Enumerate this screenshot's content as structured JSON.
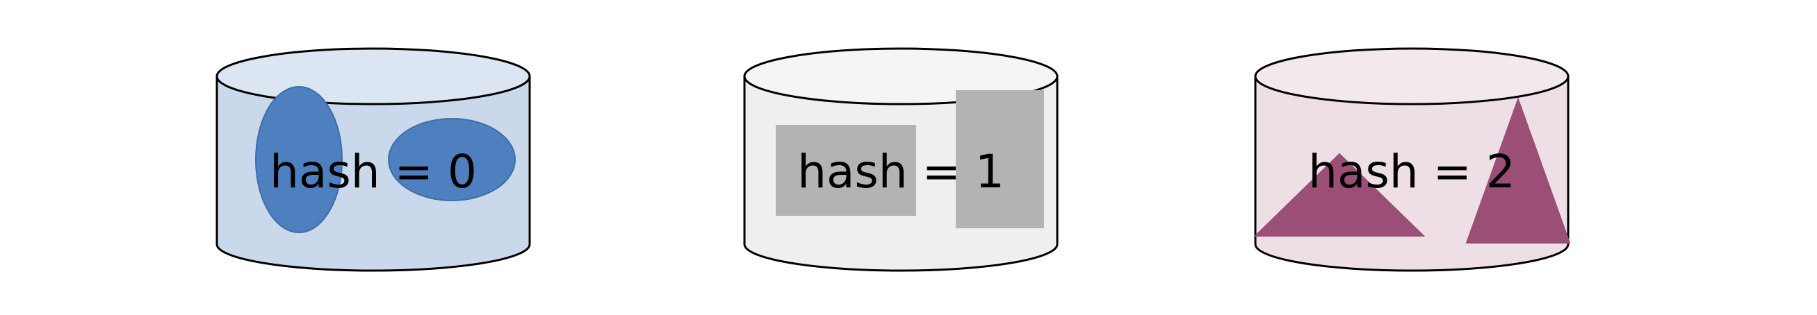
{
  "buckets": [
    {
      "label": "hash = 0",
      "shape_kind": "ellipses",
      "body_color": "#CAD8EC",
      "top_color": "#DCE6F2",
      "shape_color": "#4E80C0",
      "shape_stroke": "#3E6DA8"
    },
    {
      "label": "hash = 1",
      "shape_kind": "rectangles",
      "body_color": "#EFEFEF",
      "top_color": "#F5F5F5",
      "shape_color": "#B3B3B3",
      "shape_stroke": "#B3B3B3"
    },
    {
      "label": "hash = 2",
      "shape_kind": "triangles",
      "body_color": "#EEDFE7",
      "top_color": "#F3E8EE",
      "shape_color": "#9B4F76",
      "shape_stroke": "#9B4F76"
    }
  ]
}
